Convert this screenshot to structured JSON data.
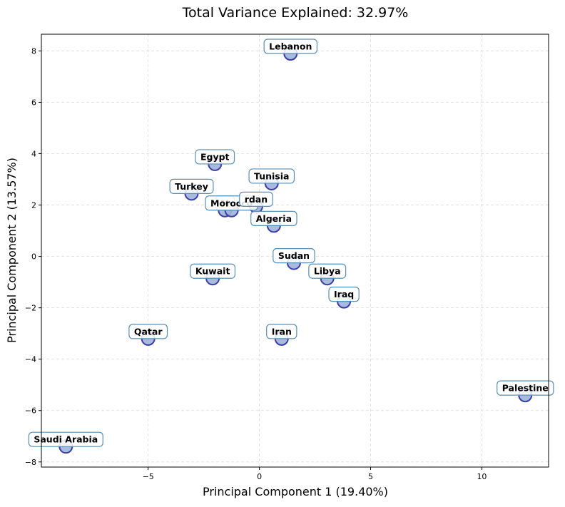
{
  "chart_data": {
    "type": "scatter",
    "title": "Total Variance Explained: 32.97%",
    "xlabel": "Principal Component 1 (19.40%)",
    "ylabel": "Principal Component 2 (13.57%)",
    "xlim": [
      -9.8,
      13.0
    ],
    "ylim": [
      -8.2,
      8.65
    ],
    "xticks": [
      -5,
      0,
      5,
      10
    ],
    "xtick_labels": [
      "−5",
      "0",
      "5",
      "10"
    ],
    "yticks": [
      -8,
      -6,
      -4,
      -2,
      0,
      2,
      4,
      6,
      8
    ],
    "ytick_labels": [
      "−8",
      "−6",
      "−4",
      "−2",
      "0",
      "2",
      "4",
      "6",
      "8"
    ],
    "grid": true,
    "colors": {
      "marker_fill": "#9fb3dc",
      "marker_edge": "#3b3ea6",
      "label_box_edge": "#5b8fb3",
      "label_box_fill": "#ffffff",
      "grid": "#d9d9d9"
    },
    "points": [
      {
        "name": "Lebanon",
        "x": 1.4,
        "y": 7.9
      },
      {
        "name": "Egypt",
        "x": -2.0,
        "y": 3.6
      },
      {
        "name": "Tunisia",
        "x": 0.55,
        "y": 2.85
      },
      {
        "name": "Turkey",
        "x": -3.05,
        "y": 2.45
      },
      {
        "name": "Mauritania",
        "display": "M",
        "x": -1.55,
        "y": 1.8
      },
      {
        "name": "Morocco",
        "x": -1.25,
        "y": 1.8
      },
      {
        "name": "Jordan",
        "display": "rdan",
        "x": -0.15,
        "y": 1.95
      },
      {
        "name": "Algeria",
        "x": 0.65,
        "y": 1.2
      },
      {
        "name": "Sudan",
        "x": 1.55,
        "y": -0.25
      },
      {
        "name": "Kuwait",
        "x": -2.1,
        "y": -0.85
      },
      {
        "name": "Libya",
        "x": 3.05,
        "y": -0.85
      },
      {
        "name": "Iraq",
        "x": 3.8,
        "y": -1.75
      },
      {
        "name": "Qatar",
        "x": -5.0,
        "y": -3.2
      },
      {
        "name": "Iran",
        "x": 1.0,
        "y": -3.2
      },
      {
        "name": "Palestine",
        "x": 11.95,
        "y": -5.4
      },
      {
        "name": "Saudi Arabia",
        "x": -8.7,
        "y": -7.4
      }
    ]
  }
}
